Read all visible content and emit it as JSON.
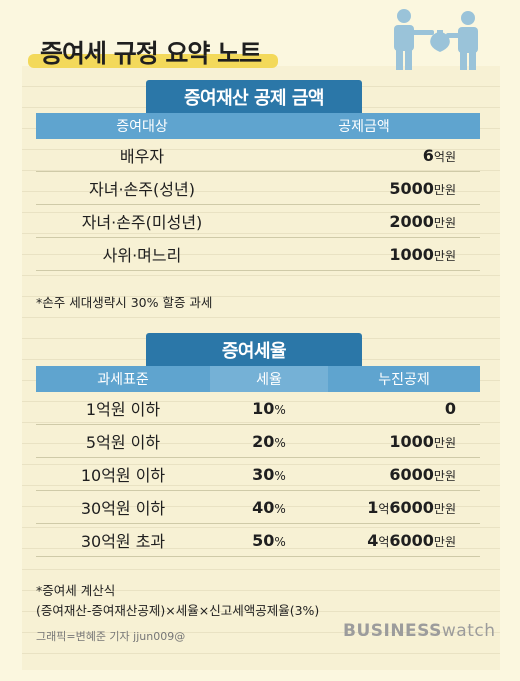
{
  "title": "증여세 규정 요약 노트",
  "section1": {
    "tab": "증여재산 공제 금액",
    "headers": [
      "증여대상",
      "공제금액"
    ],
    "rows": [
      {
        "target": "배우자",
        "amount_num": "6",
        "amount_unit": "억원"
      },
      {
        "target": "자녀·손주(성년)",
        "amount_num": "5000",
        "amount_unit": "만원"
      },
      {
        "target": "자녀·손주(미성년)",
        "amount_num": "2000",
        "amount_unit": "만원"
      },
      {
        "target": "사위·며느리",
        "amount_num": "1000",
        "amount_unit": "만원"
      }
    ],
    "note": "*손주 세대생략시 30% 할증 과세"
  },
  "section2": {
    "tab": "증여세율",
    "headers": [
      "과세표준",
      "세율",
      "누진공제"
    ],
    "rows": [
      {
        "base": "1억원 이하",
        "rate": "10",
        "rate_unit": "%",
        "d1": "",
        "d1u": "",
        "d2": "0",
        "d2u": ""
      },
      {
        "base": "5억원 이하",
        "rate": "20",
        "rate_unit": "%",
        "d1": "",
        "d1u": "",
        "d2": "1000",
        "d2u": "만원"
      },
      {
        "base": "10억원 이하",
        "rate": "30",
        "rate_unit": "%",
        "d1": "",
        "d1u": "",
        "d2": "6000",
        "d2u": "만원"
      },
      {
        "base": "30억원 이하",
        "rate": "40",
        "rate_unit": "%",
        "d1": "1",
        "d1u": "억",
        "d2": "6000",
        "d2u": "만원"
      },
      {
        "base": "30억원 초과",
        "rate": "50",
        "rate_unit": "%",
        "d1": "4",
        "d1u": "억",
        "d2": "6000",
        "d2u": "만원"
      }
    ],
    "note1": "*증여세 계산식",
    "note2": "(증여재산-증여재산공제)×세율×신고세액공제율(3%)"
  },
  "credit": "그래픽=변혜준 기자 jjun009@",
  "logo": {
    "part1": "BUSINESS",
    "part2": "watch"
  },
  "colors": {
    "tab": "#2b77a8",
    "header": "#5fa4cf",
    "highlight": "#f3d95a",
    "paper": "#f7f1d4"
  }
}
